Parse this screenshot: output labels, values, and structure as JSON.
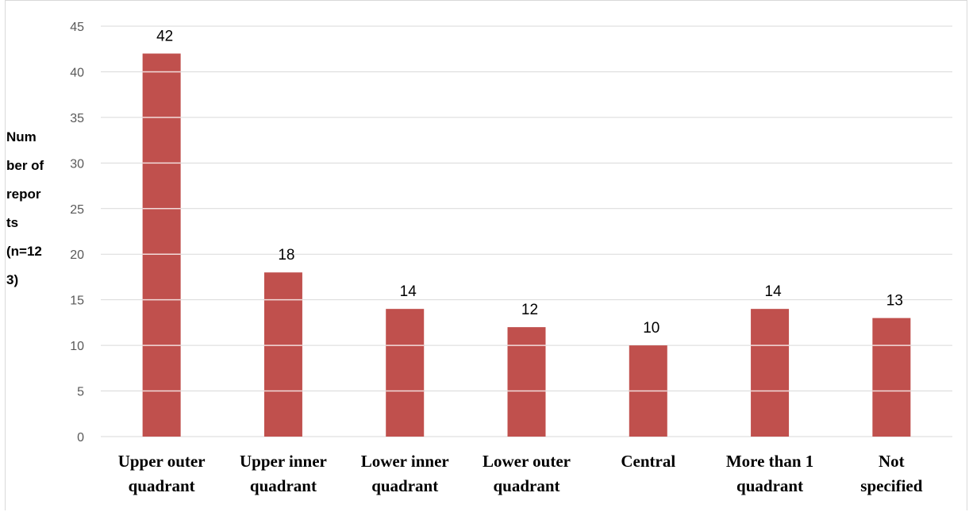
{
  "colors": {
    "bar": "#c0504d",
    "grid": "#d9d9d9",
    "tick": "#595959"
  },
  "chart_data": {
    "type": "bar",
    "title": "",
    "xlabel": "",
    "ylabel_lines": [
      "Num",
      "ber of",
      "repor",
      "ts",
      "(n=12",
      "3)"
    ],
    "categories": [
      [
        "Upper outer",
        "quadrant"
      ],
      [
        "Upper inner",
        "quadrant"
      ],
      [
        "Lower inner",
        "quadrant"
      ],
      [
        "Lower outer",
        "quadrant"
      ],
      [
        "Central"
      ],
      [
        "More than 1",
        "quadrant"
      ],
      [
        "Not",
        "specified"
      ]
    ],
    "values": [
      42,
      18,
      14,
      12,
      10,
      14,
      13
    ],
    "ylim": [
      0,
      45
    ],
    "yticks": [
      0,
      5,
      10,
      15,
      20,
      25,
      30,
      35,
      40,
      45
    ],
    "grid": true,
    "legend": "none",
    "data_labels": true
  }
}
